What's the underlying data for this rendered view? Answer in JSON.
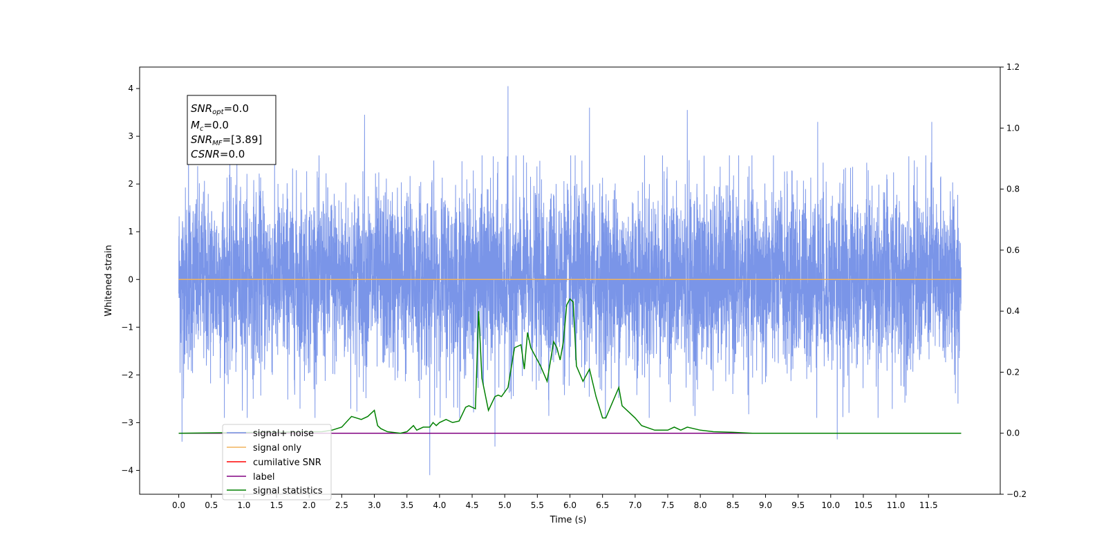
{
  "chart_data": {
    "type": "line",
    "xlabel": "Time (s)",
    "ylabel_left": "Whitened strain",
    "ylabel_right": "",
    "xlim": [
      -0.6,
      12.6
    ],
    "ylim_left": [
      -4.5,
      4.45
    ],
    "ylim_right": [
      -0.2,
      1.2
    ],
    "x_ticks": [
      0.0,
      0.5,
      1.0,
      1.5,
      2.0,
      2.5,
      3.0,
      3.5,
      4.0,
      4.5,
      5.0,
      5.5,
      6.0,
      6.5,
      7.0,
      7.5,
      8.0,
      8.5,
      9.0,
      9.5,
      10.0,
      10.5,
      11.0,
      11.5
    ],
    "x_tick_labels": [
      "0.0",
      "0.5",
      "1.0",
      "1.5",
      "2.0",
      "2.5",
      "3.0",
      "3.5",
      "4.0",
      "4.5",
      "5.0",
      "5.5",
      "6.0",
      "6.5",
      "7.0",
      "7.5",
      "8.0",
      "8.5",
      "9.0",
      "9.5",
      "10.0",
      "10.5",
      "11.0",
      "11.5"
    ],
    "y_ticks_left": [
      -4,
      -3,
      -2,
      -1,
      0,
      1,
      2,
      3,
      4
    ],
    "y_tick_labels_left": [
      "−4",
      "−3",
      "−2",
      "−1",
      "0",
      "1",
      "2",
      "3",
      "4"
    ],
    "y_ticks_right": [
      -0.2,
      0.0,
      0.2,
      0.4,
      0.6,
      0.8,
      1.0,
      1.2
    ],
    "y_tick_labels_right": [
      "−0.2",
      "0.0",
      "0.2",
      "0.4",
      "0.6",
      "0.8",
      "1.0",
      "1.2"
    ],
    "noise_band": {
      "x_range": [
        0.0,
        12.0
      ],
      "approx_min": -3.4,
      "approx_max": 4.05,
      "description_peaks": [
        {
          "x": 0.15,
          "y": 3.2
        },
        {
          "x": 2.85,
          "y": 3.45
        },
        {
          "x": 5.05,
          "y": 4.05
        },
        {
          "x": 6.3,
          "y": 3.6
        },
        {
          "x": 7.8,
          "y": 3.55
        },
        {
          "x": 9.8,
          "y": 3.3
        },
        {
          "x": 11.55,
          "y": 3.3
        },
        {
          "x": 0.05,
          "y": -3.4
        },
        {
          "x": 3.85,
          "y": -4.1
        },
        {
          "x": 4.85,
          "y": -3.5
        },
        {
          "x": 10.1,
          "y": -3.35
        }
      ]
    },
    "series": [
      {
        "name": "signal+ noise",
        "axis": "left",
        "color": "#7a95e8",
        "kind": "noise"
      },
      {
        "name": "signal only",
        "axis": "left",
        "color": "#f2b35c",
        "x": [
          0.0,
          12.0
        ],
        "y": [
          0.0,
          0.0
        ]
      },
      {
        "name": "cumilative SNR",
        "axis": "right",
        "color": "#ff0000",
        "x": [
          0.0,
          12.0
        ],
        "y": [
          0.0,
          0.0
        ]
      },
      {
        "name": "label",
        "axis": "right",
        "color": "#800080",
        "x": [
          0.0,
          12.0
        ],
        "y": [
          0.0,
          0.0
        ]
      },
      {
        "name": "signal statistics",
        "axis": "right",
        "color": "#008000",
        "x": [
          0.0,
          2.2,
          2.35,
          2.5,
          2.65,
          2.8,
          2.9,
          3.0,
          3.05,
          3.1,
          3.2,
          3.4,
          3.5,
          3.6,
          3.65,
          3.75,
          3.85,
          3.9,
          3.95,
          4.0,
          4.1,
          4.2,
          4.3,
          4.4,
          4.45,
          4.55,
          4.6,
          4.65,
          4.75,
          4.85,
          4.9,
          4.95,
          5.05,
          5.15,
          5.25,
          5.3,
          5.35,
          5.4,
          5.45,
          5.55,
          5.65,
          5.75,
          5.8,
          5.85,
          5.9,
          5.95,
          6.0,
          6.05,
          6.1,
          6.2,
          6.3,
          6.4,
          6.5,
          6.55,
          6.65,
          6.75,
          6.8,
          6.9,
          7.0,
          7.1,
          7.3,
          7.5,
          7.6,
          7.7,
          7.8,
          8.0,
          8.2,
          8.5,
          8.8,
          9.0,
          9.3,
          12.0
        ],
        "y": [
          0.0,
          0.005,
          0.01,
          0.02,
          0.055,
          0.045,
          0.055,
          0.075,
          0.025,
          0.015,
          0.005,
          0.0,
          0.005,
          0.025,
          0.01,
          0.02,
          0.02,
          0.035,
          0.025,
          0.035,
          0.045,
          0.035,
          0.04,
          0.085,
          0.09,
          0.08,
          0.4,
          0.18,
          0.075,
          0.12,
          0.125,
          0.12,
          0.15,
          0.28,
          0.29,
          0.21,
          0.33,
          0.28,
          0.26,
          0.22,
          0.17,
          0.3,
          0.28,
          0.24,
          0.3,
          0.42,
          0.44,
          0.43,
          0.22,
          0.17,
          0.21,
          0.12,
          0.05,
          0.05,
          0.1,
          0.15,
          0.09,
          0.07,
          0.05,
          0.025,
          0.01,
          0.01,
          0.02,
          0.01,
          0.02,
          0.01,
          0.005,
          0.003,
          0.0,
          0.0,
          0.0,
          0.0
        ]
      }
    ],
    "legend": {
      "placement": "lower-left",
      "entries": [
        "signal+ noise",
        "signal only",
        "cumilative SNR",
        "label",
        "signal statistics"
      ]
    },
    "annotation_lines": [
      "SNR_opt=0.0",
      "M_c=0.0",
      "SNR_MF=[3.89]",
      "CSNR=0.0"
    ],
    "annotation": {
      "snr_opt_base": "SNR",
      "snr_opt_sub": "opt",
      "snr_opt_value": "=0.0",
      "mc_base": "M",
      "mc_sub": "c",
      "mc_value": "=0.0",
      "snr_mf_base": "SNR",
      "snr_mf_sub": "MF",
      "snr_mf_value": "=[3.89]",
      "csnr_base": "CSNR",
      "csnr_value": "=0.0"
    }
  }
}
